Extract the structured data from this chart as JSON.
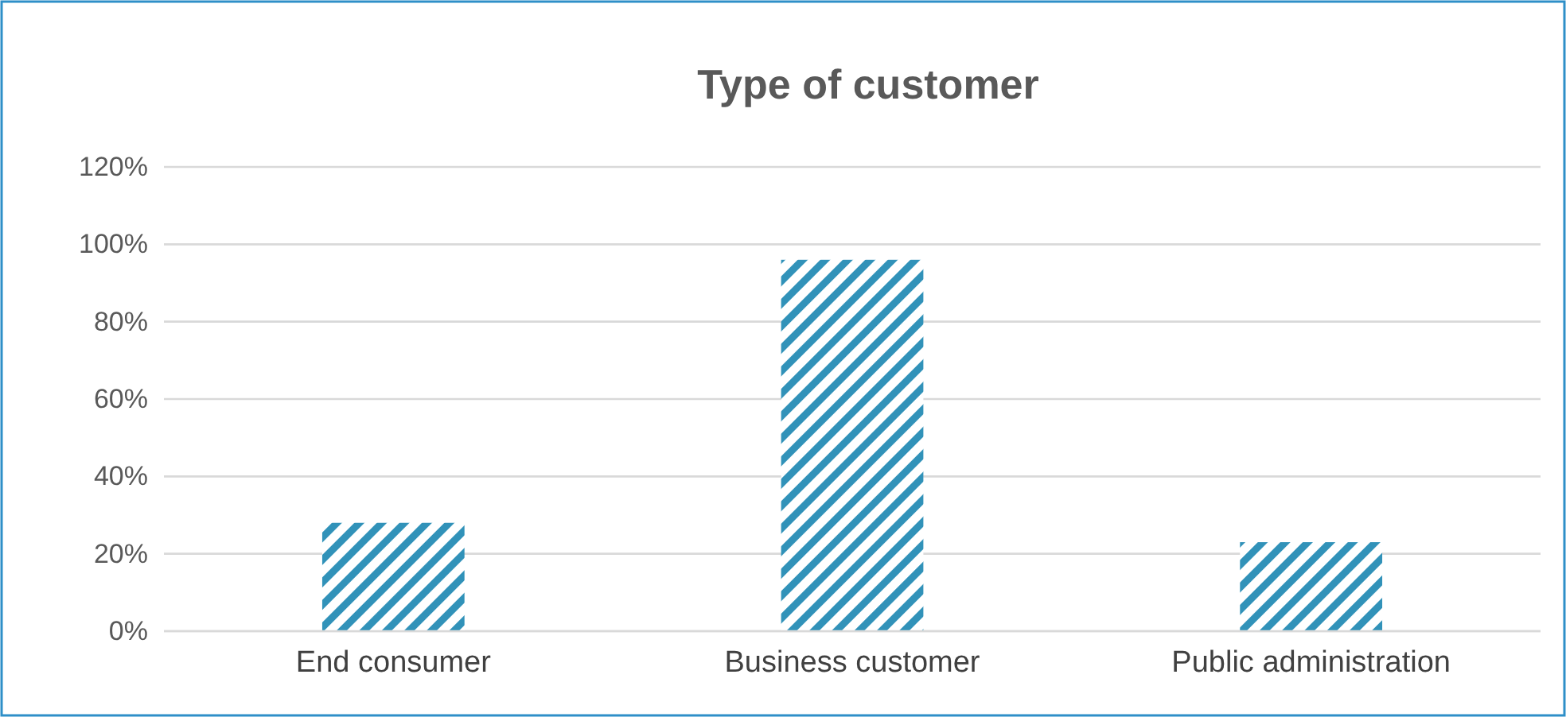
{
  "chart_data": {
    "type": "bar",
    "title": "Type of customer",
    "categories": [
      "End consumer",
      "Business customer",
      "Public administration"
    ],
    "values": [
      0.28,
      0.96,
      0.23
    ],
    "color": "#3192b9",
    "ylim": [
      0,
      1.2
    ],
    "yticks": [
      {
        "value": 0,
        "label": "0%"
      },
      {
        "value": 0.2,
        "label": "20%"
      },
      {
        "value": 0.4,
        "label": "40%"
      },
      {
        "value": 0.6,
        "label": "60%"
      },
      {
        "value": 0.8,
        "label": "80%"
      },
      {
        "value": 1.0,
        "label": "100%"
      },
      {
        "value": 1.2,
        "label": "120%"
      }
    ],
    "grid": "y"
  }
}
